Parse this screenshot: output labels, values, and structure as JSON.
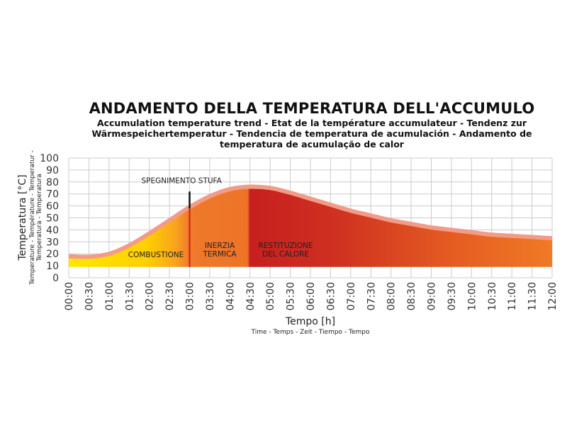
{
  "chart_data": {
    "type": "area",
    "title": "ANDAMENTO DELLA TEMPERATURA DELL'ACCUMULO",
    "subtitle": "Accumulation temperature trend - Etat de la température accumulateur - Tendenz zur Wärmespeichertemperatur - Tendencia de temperatura de acumulación - Andamento de temperatura de acumulação de calor",
    "ylabel": "Temperatura [°C]",
    "ylabel_sub": "Temperature - Température - Temperatur - Temperatura - Temperatura",
    "xlabel": "Tempo [h]",
    "xlabel_sub": "Time - Temps - Zeit - Tiempo - Tempo",
    "ylim": [
      0,
      100
    ],
    "yticks": [
      "0",
      "10",
      "20",
      "30",
      "40",
      "50",
      "60",
      "70",
      "80",
      "90",
      "100"
    ],
    "xticks": [
      "00:00",
      "00:30",
      "01:00",
      "01:30",
      "02:00",
      "02:30",
      "03:00",
      "03:30",
      "04:00",
      "04:30",
      "05:00",
      "05:30",
      "06:00",
      "06:30",
      "07:00",
      "07:30",
      "08:00",
      "08:30",
      "09:00",
      "09:30",
      "10:00",
      "10:30",
      "11:00",
      "11:30",
      "12:00"
    ],
    "grid": true,
    "series": [
      {
        "x": [
          0,
          0.5,
          1,
          1.5,
          2,
          2.5,
          3,
          3.5,
          4,
          4.5,
          5,
          5.5,
          6,
          6.5,
          7,
          7.5,
          8,
          8.5,
          9,
          9.5,
          10,
          10.5,
          11,
          11.5,
          12
        ],
        "values": [
          18,
          17.5,
          20,
          27,
          37,
          48,
          59,
          68,
          74,
          76,
          75,
          71,
          66,
          61,
          56,
          52,
          48,
          45,
          42,
          40,
          38,
          36,
          35,
          34,
          33
        ]
      }
    ],
    "annotations": [
      {
        "label": "SPEGNIMENTO STUFA",
        "x": 3.0
      }
    ],
    "regions": [
      {
        "label": "COMBUSTIONE",
        "from": 0,
        "to": 3.0,
        "color": "#f5c400"
      },
      {
        "label": "INERZIA\nTERMICA",
        "from": 3.0,
        "to": 4.5,
        "color": "#ee7128"
      },
      {
        "label": "RESTITUZIONE\nDEL CALORE",
        "from": 4.5,
        "to": 12,
        "color": "#c91f1f"
      }
    ],
    "colors": {
      "yellow": "#ffd800",
      "orange": "#ef7a2c",
      "red": "#c41e1e",
      "line": "#f29b88",
      "marker": "#111111",
      "grid": "#cccccc"
    }
  }
}
